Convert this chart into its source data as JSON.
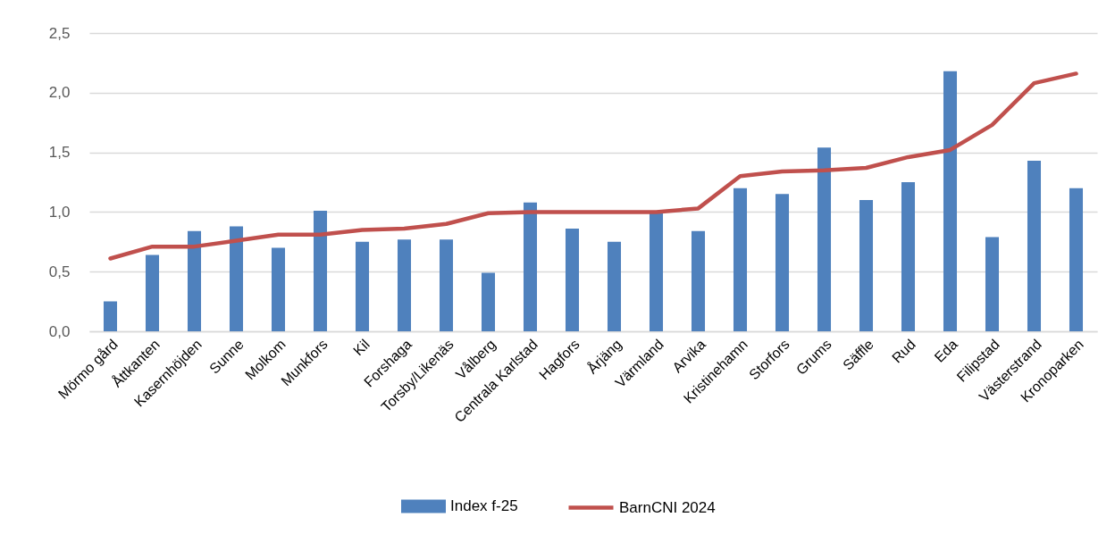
{
  "chart_data": {
    "type": "bar",
    "categories": [
      "Mörmo gård",
      "Åttkanten",
      "Kasernhöjden",
      "Sunne",
      "Molkom",
      "Munkfors",
      "Kil",
      "Forshaga",
      "Torsby/Likenäs",
      "Vålberg",
      "Centrala Karlstad",
      "Hagfors",
      "Årjäng",
      "Värmland",
      "Arvika",
      "Kristinehamn",
      "Storfors",
      "Grums",
      "Säffle",
      "Rud",
      "Eda",
      "Filipstad",
      "Västerstrand",
      "Kronoparken"
    ],
    "series": [
      {
        "name": "Index f-25",
        "color": "#4f81bd",
        "values": [
          0.25,
          0.64,
          0.84,
          0.88,
          0.7,
          1.01,
          0.75,
          0.77,
          0.77,
          0.49,
          1.08,
          0.86,
          0.75,
          0.99,
          0.84,
          1.2,
          1.15,
          1.54,
          1.1,
          1.25,
          2.18,
          0.79,
          1.43,
          1.2
        ]
      },
      {
        "name": "BarnCNI 2024",
        "type": "line",
        "color": "#c0504d",
        "values": [
          0.61,
          0.71,
          0.71,
          0.76,
          0.81,
          0.81,
          0.85,
          0.86,
          0.9,
          0.99,
          1.0,
          1.0,
          1.0,
          1.0,
          1.03,
          1.3,
          1.34,
          1.35,
          1.37,
          1.46,
          1.52,
          1.73,
          2.08,
          2.16
        ]
      }
    ],
    "ylim": [
      0,
      2.5
    ],
    "yticks": [
      {
        "value": 0,
        "label": "0,0"
      },
      {
        "value": 0.5,
        "label": "0,5"
      },
      {
        "value": 1,
        "label": "1,0"
      },
      {
        "value": 1.5,
        "label": "1,5"
      },
      {
        "value": 2,
        "label": "2,0"
      },
      {
        "value": 2.5,
        "label": "2,5"
      }
    ],
    "grid": "y",
    "legend": "bottom"
  }
}
